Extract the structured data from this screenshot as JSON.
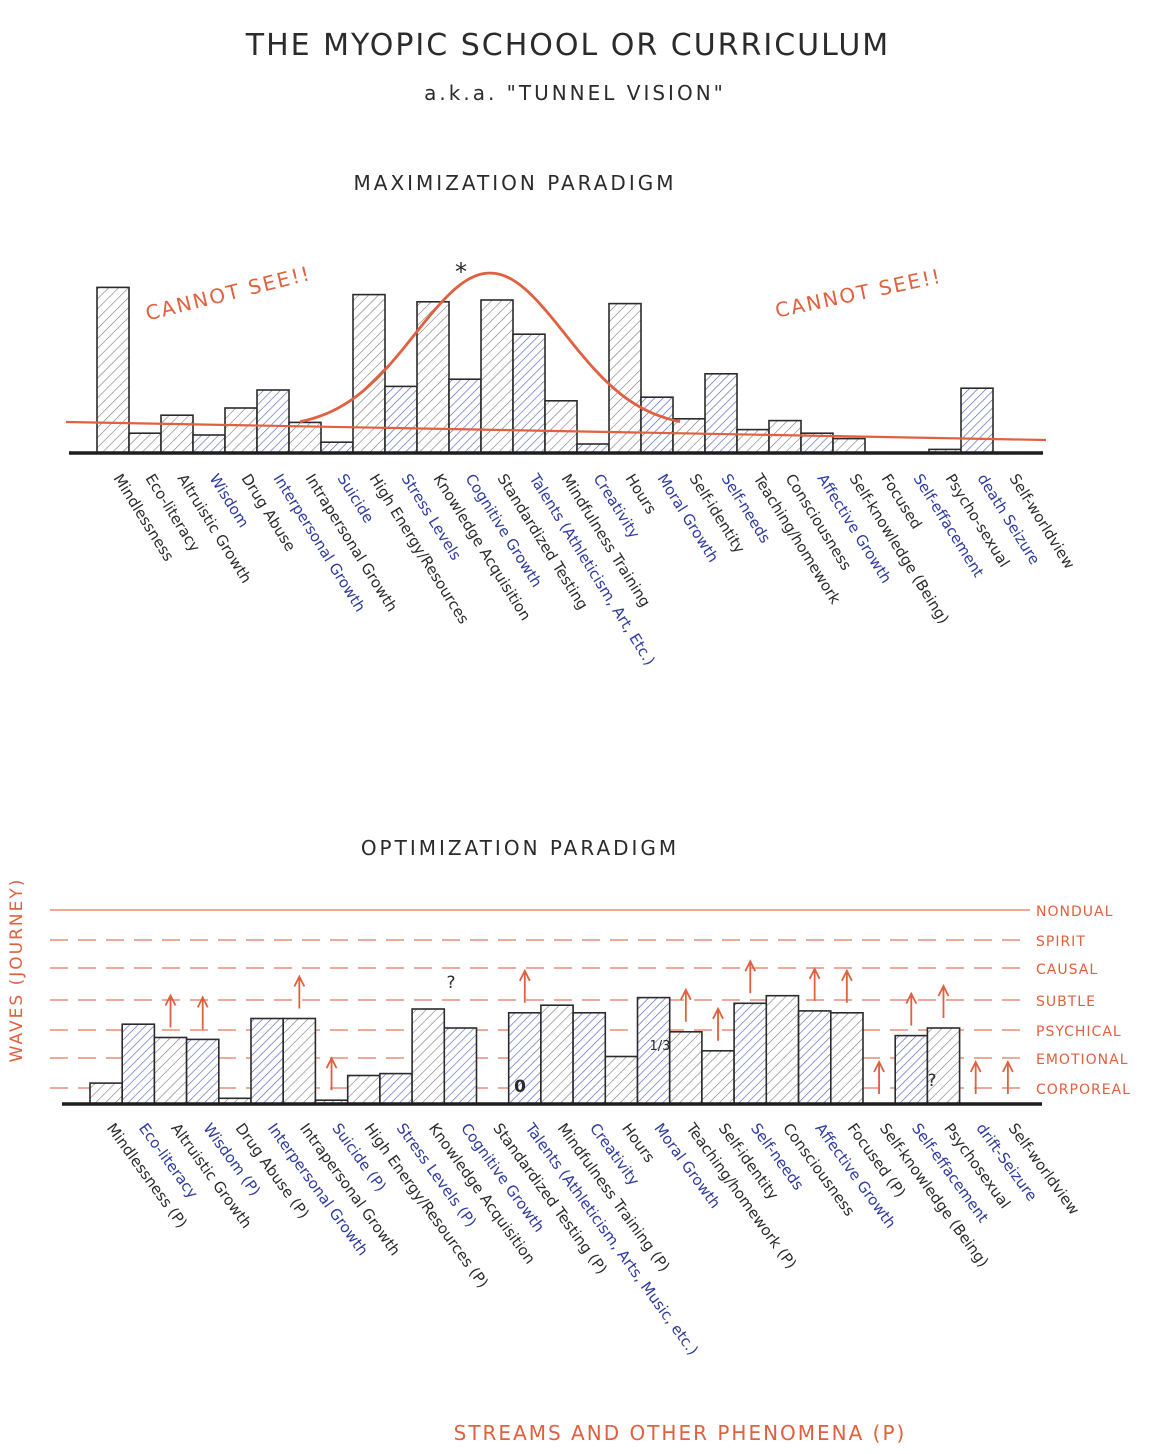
{
  "title": "THE MYOPIC SCHOOL OR CURRICULUM",
  "subtitle": "a.k.a. \"TUNNEL VISION\"",
  "colors": {
    "ink": "#2b2b2b",
    "black_hatch": "#6a6a6a",
    "blue": "#2d3aa0",
    "blue_hatch": "#5563c4",
    "red": "#e0603f",
    "fill": "#ffffff"
  },
  "chart_data": [
    {
      "type": "bar",
      "title": "MAXIMIZATION PARADIGM",
      "annotations": [
        "CANNOT SEE!!",
        "CANNOT SEE!!",
        "*"
      ],
      "bell_curve": true,
      "threshold_line": true,
      "ylim": [
        0,
        100
      ],
      "categories": [
        "Mindlessness",
        "Eco-literacy",
        "Altruistic Growth",
        "Wisdom",
        "Drug Abuse",
        "Interpersonal Growth",
        "Intrapersonal Growth",
        "Suicide",
        "High Energy/Resources",
        "Stress Levels",
        "Knowledge Acquisition",
        "Cognitive Growth",
        "Standardized Testing",
        "Talents (Athleticism, Art, Etc.)",
        "Mindfulness Training",
        "Creativity",
        "Hours",
        "Moral Growth",
        "Self-identity",
        "Self-needs",
        "Teaching/homework",
        "Consciousness",
        "Affective Growth",
        "Self-knowledge (Being)",
        "Focused",
        "Self-effacement",
        "Psycho-sexual",
        "death Seizure",
        "Self-worldview"
      ],
      "category_colors": [
        "black",
        "black",
        "black",
        "blue",
        "black",
        "blue",
        "black",
        "blue",
        "black",
        "blue",
        "black",
        "blue",
        "black",
        "blue",
        "black",
        "blue",
        "black",
        "blue",
        "black",
        "blue",
        "black",
        "black",
        "blue",
        "black",
        "black",
        "blue",
        "black",
        "blue",
        "black"
      ],
      "values": [
        92,
        11,
        21,
        10,
        25,
        35,
        17,
        6,
        88,
        37,
        84,
        41,
        85,
        66,
        29,
        5,
        83,
        31,
        19,
        44,
        13,
        18,
        11,
        8,
        0,
        0,
        2,
        36,
        0
      ]
    },
    {
      "type": "bar",
      "title": "OPTIMIZATION PARADIGM",
      "xlabel": "STREAMS AND OTHER PHENOMENA (P)",
      "ylabel": "WAVES (JOURNEY)",
      "levels": [
        "NONDUAL",
        "SPIRIT",
        "CAUSAL",
        "SUBTLE",
        "PSYCHICAL",
        "EMOTIONAL",
        "CORPOREAL"
      ],
      "annotations": [
        "?",
        "0",
        "1/3",
        "?"
      ],
      "ylim": [
        0,
        100
      ],
      "categories": [
        "Mindlessness (P)",
        "Eco-literacy",
        "Altruistic Growth",
        "Wisdom (P)",
        "Drug Abuse (P)",
        "Interpersonal Growth",
        "Intrapersonal Growth",
        "Suicide (P)",
        "High Energy/Resources (P)",
        "Stress Levels (P)",
        "Knowledge Acquisition",
        "Cognitive Growth",
        "Standardized Testing (P)",
        "Talents (Athleticism, Arts, Music, etc.)",
        "Mindfulness Training (P)",
        "Creativity",
        "Hours",
        "Moral Growth",
        "Teaching/homework (P)",
        "Self-identity",
        "Self-needs",
        "Consciousness",
        "Affective Growth",
        "Focused (P)",
        "Self-knowledge (Being)",
        "Self-effacement",
        "Psychosexual",
        "drift-Seizure",
        "Self-worldview"
      ],
      "category_colors": [
        "black",
        "blue",
        "black",
        "blue",
        "black",
        "blue",
        "black",
        "blue",
        "black",
        "blue",
        "black",
        "blue",
        "black",
        "blue",
        "black",
        "blue",
        "black",
        "blue",
        "black",
        "black",
        "blue",
        "black",
        "blue",
        "black",
        "black",
        "blue",
        "black",
        "blue",
        "black"
      ],
      "values": [
        11,
        42,
        35,
        34,
        3,
        45,
        45,
        2,
        15,
        16,
        50,
        40,
        0,
        48,
        52,
        48,
        25,
        56,
        38,
        28,
        53,
        57,
        49,
        48,
        0,
        36,
        40,
        0,
        0
      ]
    }
  ]
}
